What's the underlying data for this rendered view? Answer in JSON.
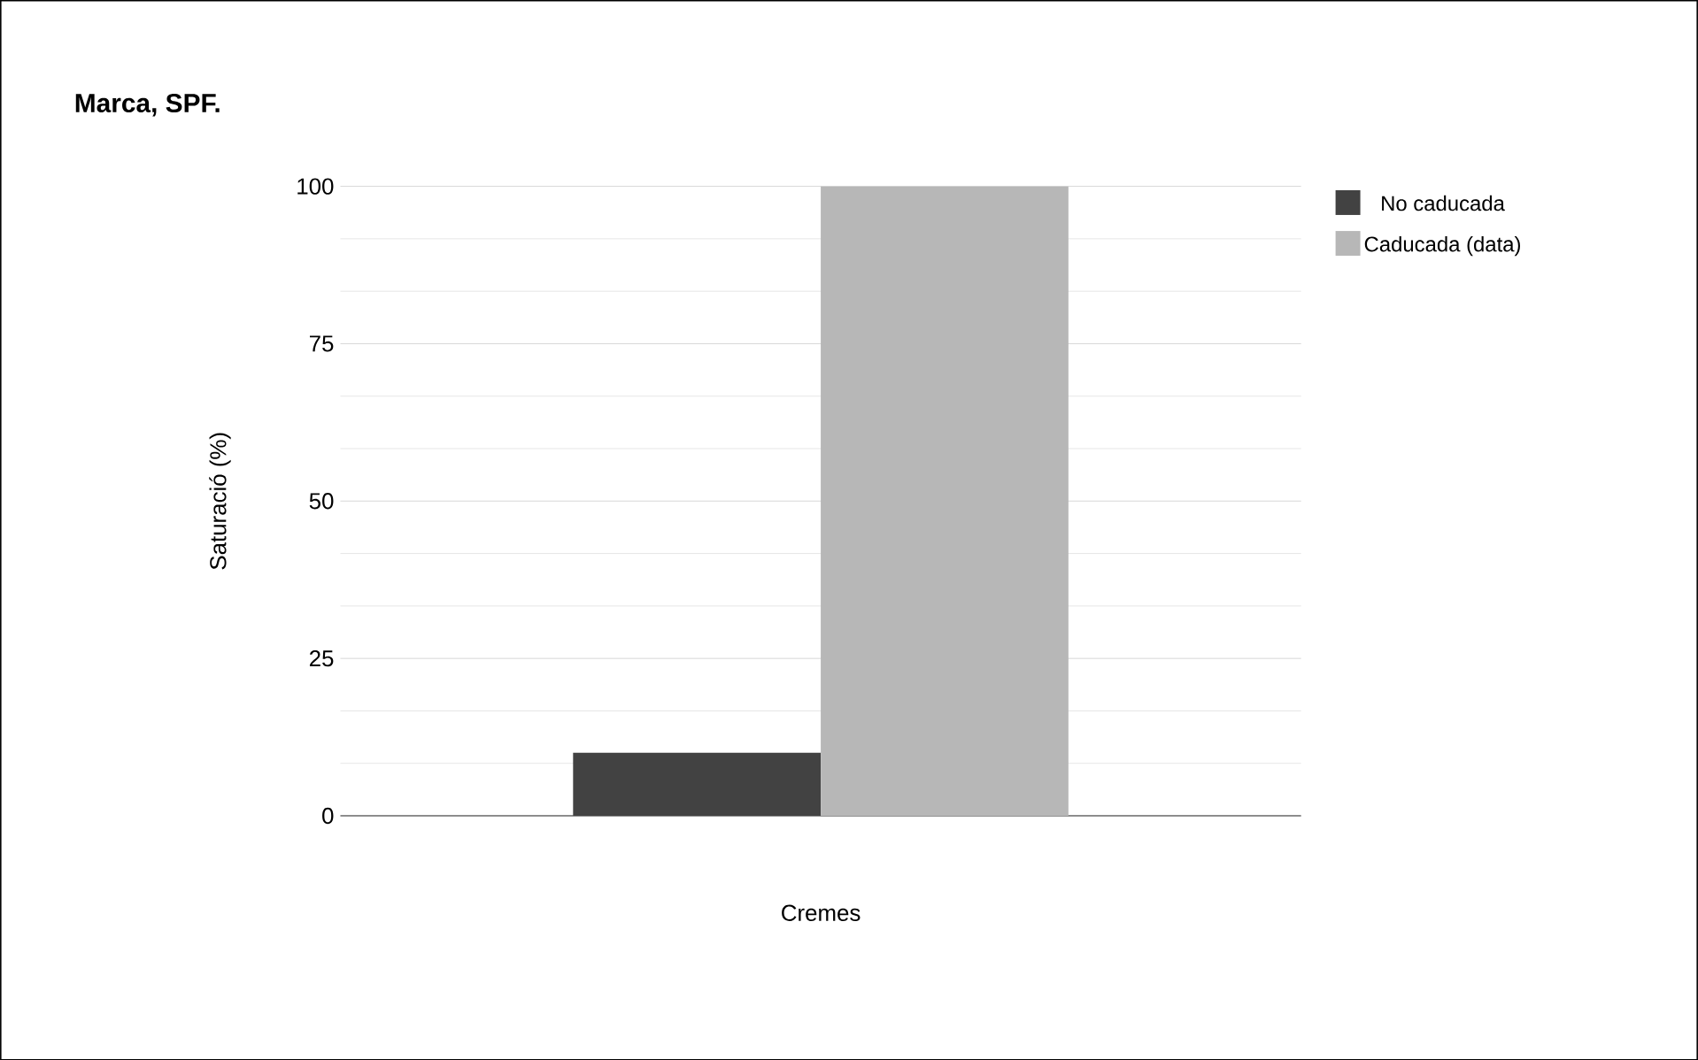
{
  "chart_data": {
    "type": "bar",
    "title": "Marca, SPF.",
    "xlabel": "Cremes",
    "ylabel": "Saturació (%)",
    "categories": [
      null
    ],
    "series": [
      {
        "name": "No caducada",
        "color": "#424242",
        "values": [
          10
        ]
      },
      {
        "name": "Caducada (data)",
        "color": "#b7b7b7",
        "values": [
          100
        ]
      }
    ],
    "ylim": [
      0,
      100
    ],
    "yticks": [
      0,
      25,
      50,
      75,
      100
    ],
    "grid": true,
    "legend": "top right"
  }
}
